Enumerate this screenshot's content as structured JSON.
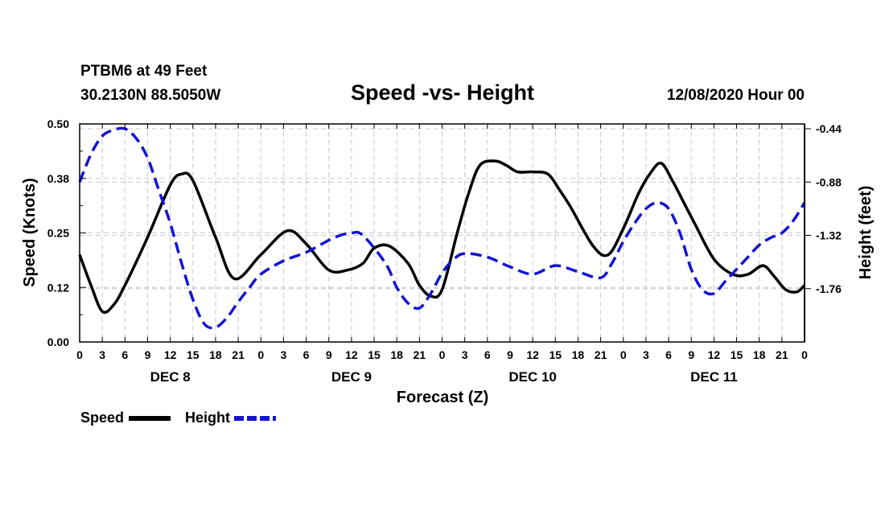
{
  "chart_data": {
    "type": "line",
    "station": "PTBM6 at 49 Feet",
    "location": "30.2130N 88.5050W",
    "title": "Speed -vs- Height",
    "run": "12/08/2020 Hour 00",
    "xlabel": "Forecast (Z)",
    "ylabel": "Speed (Knots)",
    "y2label": "Height (feet)",
    "xlim": [
      0,
      96
    ],
    "ylim": [
      0.0,
      0.5
    ],
    "y2lim": [
      -2.2,
      -0.4
    ],
    "x_ticks": [
      0,
      3,
      6,
      9,
      12,
      15,
      18,
      21,
      24,
      27,
      30,
      33,
      36,
      39,
      42,
      45,
      48,
      51,
      54,
      57,
      60,
      63,
      66,
      69,
      72,
      75,
      78,
      81,
      84,
      87,
      90,
      93,
      96
    ],
    "x_tick_labels": [
      "0",
      "3",
      "6",
      "9",
      "12",
      "15",
      "18",
      "21",
      "0",
      "3",
      "6",
      "9",
      "12",
      "15",
      "18",
      "21",
      "0",
      "3",
      "6",
      "9",
      "12",
      "15",
      "18",
      "21",
      "0",
      "3",
      "6",
      "9",
      "12",
      "15",
      "18",
      "21",
      "0"
    ],
    "day_labels": [
      {
        "x": 12,
        "label": "DEC 8"
      },
      {
        "x": 36,
        "label": "DEC 9"
      },
      {
        "x": 60,
        "label": "DEC 10"
      },
      {
        "x": 84,
        "label": "DEC 11"
      }
    ],
    "y_ticks": [
      0.0,
      0.125,
      0.25,
      0.375,
      0.5
    ],
    "y_tick_labels": [
      "0.00",
      "0.12",
      "0.25",
      "0.38",
      "0.50"
    ],
    "y2_ticks": [
      -0.44,
      -0.88,
      -1.32,
      -1.76
    ],
    "y2_tick_labels": [
      "-0.44",
      "-0.88",
      "-1.32",
      "-1.76"
    ],
    "series": [
      {
        "name": "Speed",
        "axis": "left",
        "color": "#000000",
        "dash": false,
        "x": [
          0,
          1.5,
          3,
          4.5,
          6,
          9,
          12,
          13.5,
          15,
          18,
          20.5,
          24,
          27.5,
          30,
          33,
          35.5,
          37.5,
          39,
          41,
          43.5,
          45,
          46.5,
          48,
          50,
          51.5,
          53,
          55,
          56.5,
          58,
          60,
          62,
          63.5,
          65,
          68,
          70,
          72,
          74,
          75.5,
          77,
          78.5,
          80,
          81.5,
          84,
          86.5,
          88.5,
          90.5,
          92,
          93.5,
          95,
          96
        ],
        "values": [
          0.2,
          0.13,
          0.07,
          0.085,
          0.13,
          0.24,
          0.36,
          0.385,
          0.37,
          0.24,
          0.145,
          0.2,
          0.255,
          0.225,
          0.165,
          0.165,
          0.18,
          0.215,
          0.22,
          0.18,
          0.13,
          0.105,
          0.12,
          0.25,
          0.34,
          0.405,
          0.415,
          0.405,
          0.39,
          0.39,
          0.385,
          0.35,
          0.31,
          0.22,
          0.2,
          0.26,
          0.34,
          0.385,
          0.41,
          0.37,
          0.32,
          0.27,
          0.19,
          0.155,
          0.155,
          0.175,
          0.15,
          0.12,
          0.115,
          0.13
        ]
      },
      {
        "name": "Height",
        "axis": "right",
        "color": "#1414d2",
        "dash": true,
        "x": [
          0,
          1.5,
          3,
          4.5,
          6,
          7.5,
          9,
          10.5,
          12,
          13.5,
          15,
          16.5,
          18,
          19.5,
          21,
          22.5,
          24,
          27,
          30,
          33,
          34.5,
          36,
          37.5,
          40.5,
          42,
          43.5,
          45,
          46.5,
          48,
          49.5,
          51,
          54,
          57,
          60,
          63,
          66,
          69,
          70.5,
          72,
          73.5,
          75,
          76.5,
          78,
          79.5,
          81,
          82.5,
          84,
          85.5,
          87,
          88.5,
          90,
          91.5,
          93,
          94.5,
          96
        ],
        "values": [
          -0.88,
          -0.65,
          -0.5,
          -0.45,
          -0.44,
          -0.52,
          -0.68,
          -0.95,
          -1.22,
          -1.55,
          -1.85,
          -2.05,
          -2.08,
          -2.0,
          -1.87,
          -1.75,
          -1.64,
          -1.53,
          -1.46,
          -1.36,
          -1.32,
          -1.3,
          -1.32,
          -1.55,
          -1.75,
          -1.88,
          -1.92,
          -1.8,
          -1.63,
          -1.52,
          -1.47,
          -1.5,
          -1.58,
          -1.64,
          -1.57,
          -1.62,
          -1.67,
          -1.55,
          -1.37,
          -1.22,
          -1.1,
          -1.05,
          -1.1,
          -1.3,
          -1.6,
          -1.77,
          -1.8,
          -1.7,
          -1.6,
          -1.5,
          -1.4,
          -1.34,
          -1.3,
          -1.2,
          -1.05
        ],
        "dash_pattern_note": "dashed"
      }
    ],
    "legend": [
      {
        "label": "Speed",
        "color": "#000000",
        "dash": false
      },
      {
        "label": "Height",
        "color": "#1414d2",
        "dash": true
      }
    ]
  }
}
